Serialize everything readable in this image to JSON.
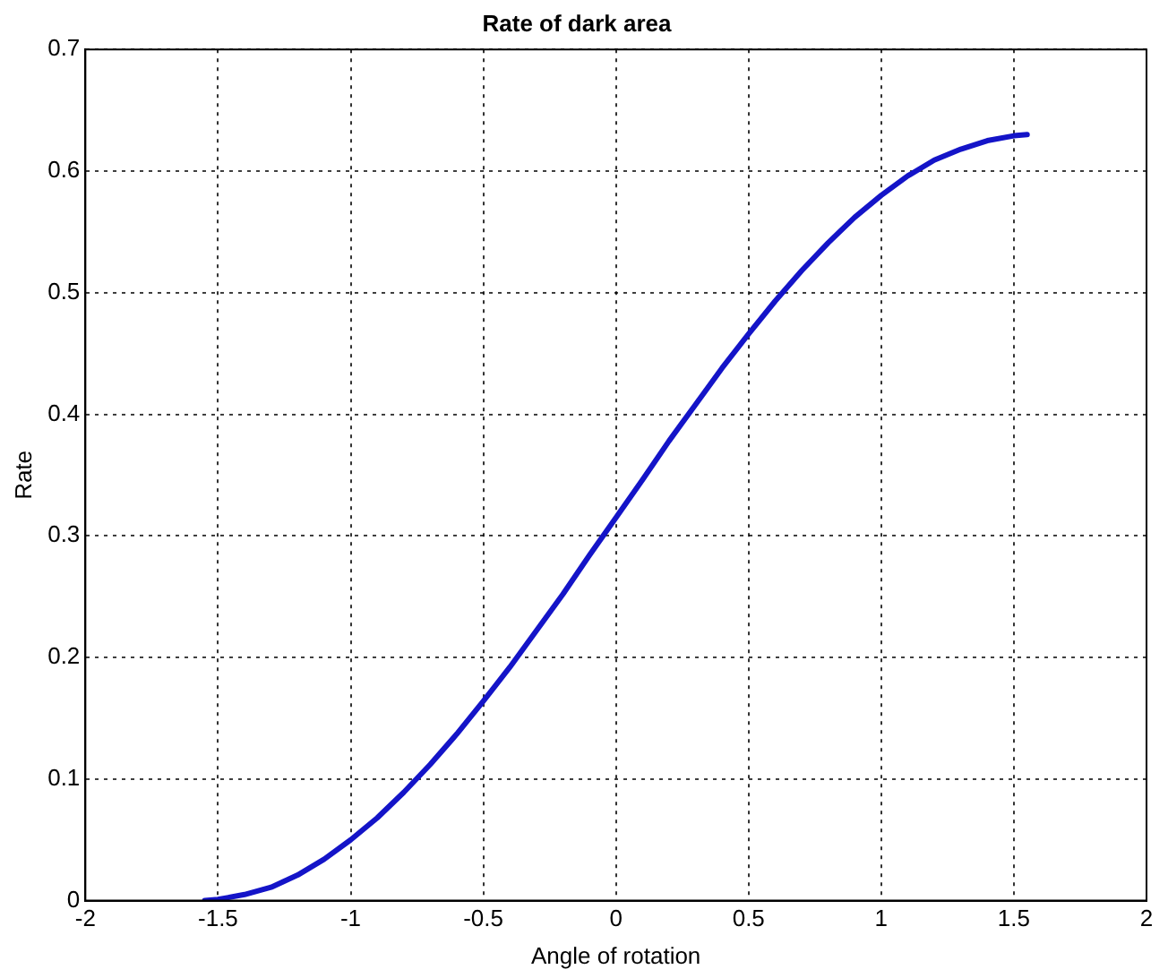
{
  "chart_data": {
    "type": "line",
    "title": "Rate of dark area",
    "xlabel": "Angle of rotation",
    "ylabel": "Rate",
    "x": [
      -1.55,
      -1.5,
      -1.4,
      -1.3,
      -1.2,
      -1.1,
      -1.0,
      -0.9,
      -0.8,
      -0.7,
      -0.6,
      -0.5,
      -0.4,
      -0.3,
      -0.2,
      -0.1,
      0,
      0.1,
      0.2,
      0.3,
      0.4,
      0.5,
      0.6,
      0.7,
      0.8,
      0.9,
      1.0,
      1.1,
      1.2,
      1.3,
      1.4,
      1.5,
      1.55
    ],
    "series": [
      {
        "color": "#1414c8",
        "values": [
          0.0,
          0.001,
          0.005,
          0.011,
          0.021,
          0.034,
          0.05,
          0.068,
          0.089,
          0.112,
          0.137,
          0.164,
          0.192,
          0.222,
          0.252,
          0.284,
          0.315,
          0.346,
          0.378,
          0.408,
          0.438,
          0.466,
          0.493,
          0.518,
          0.541,
          0.562,
          0.58,
          0.596,
          0.609,
          0.618,
          0.625,
          0.629,
          0.63
        ]
      }
    ],
    "xlim": [
      -2,
      2
    ],
    "xticks": [
      -2,
      -1.5,
      -1,
      -0.5,
      0,
      0.5,
      1,
      1.5,
      2
    ],
    "ylim": [
      0,
      0.7
    ],
    "yticks": [
      0,
      0.1,
      0.2,
      0.3,
      0.4,
      0.5,
      0.6,
      0.7
    ],
    "grid": true,
    "legend": false,
    "marker": "none",
    "line_style": "solid"
  }
}
